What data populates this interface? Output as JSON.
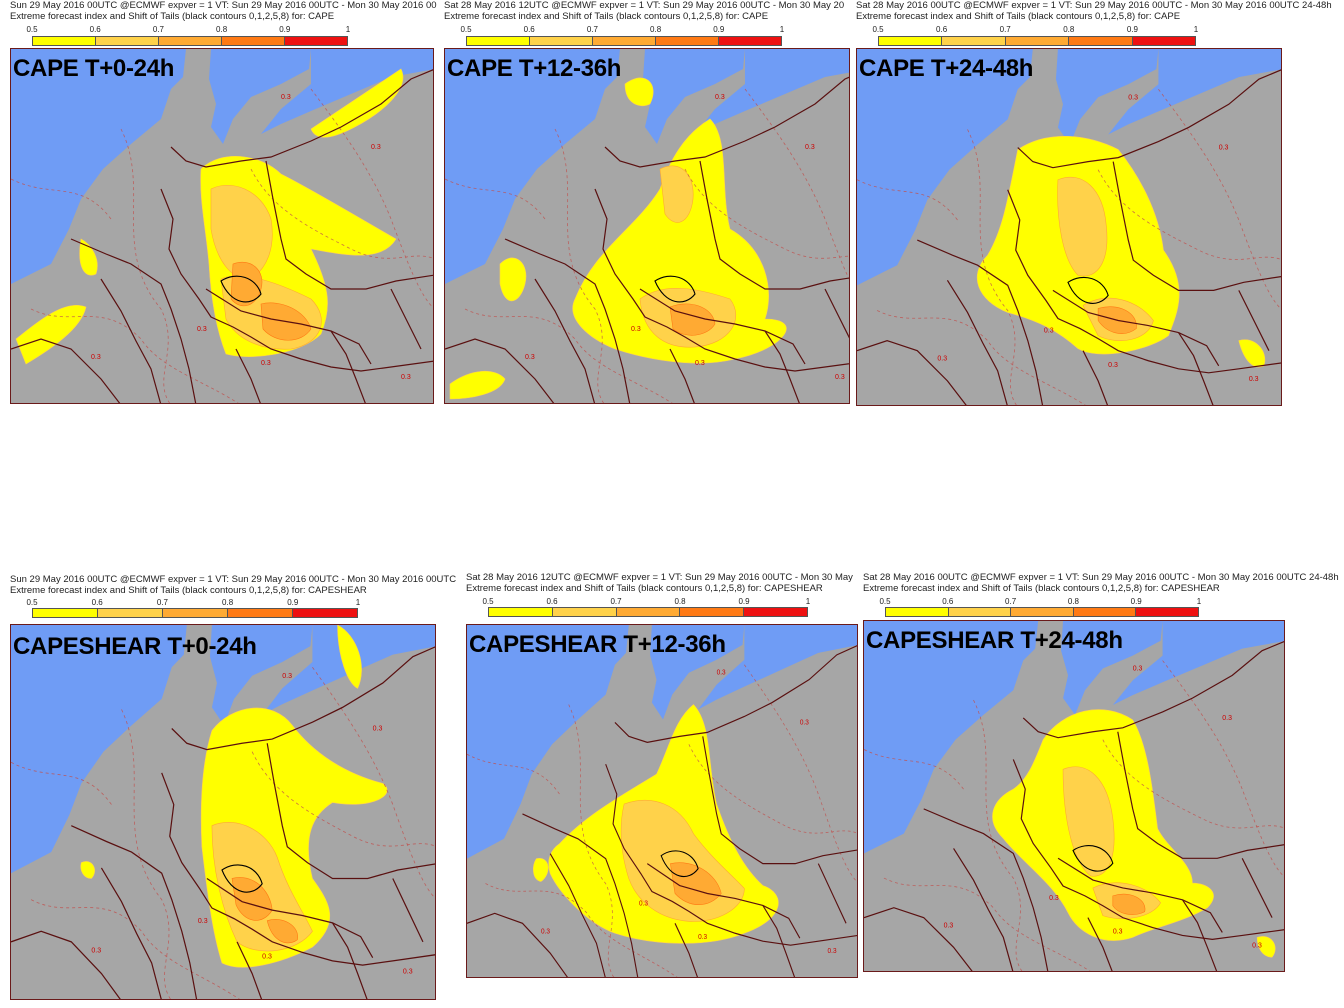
{
  "colors": {
    "sea": "#6f9cf5",
    "land": "#a6a6a6",
    "border": "#5a1010",
    "scale": [
      "#ffff00",
      "#ffd24a",
      "#ffaa33",
      "#ff7a14",
      "#ee1111"
    ]
  },
  "colorbar_ticks": [
    "0.5",
    "0.6",
    "0.7",
    "0.8",
    "0.9",
    "1"
  ],
  "contour_label": "0.3",
  "panels": [
    {
      "header1": "Sun 29 May 2016 00UTC @ECMWF expver = 1 VT: Sun 29 May 2016 00UTC - Mon 30 May 2016 00",
      "header2": "Extreme forecast index and Shift of Tails (black contours 0,1,2,5,8) for: CAPE",
      "title": "CAPE T+0-24h",
      "map_icon": "map-cape-0-24"
    },
    {
      "header1": "Sat 28 May 2016 12UTC @ECMWF expver = 1 VT: Sun 29 May 2016 00UTC - Mon 30 May 20",
      "header2": "Extreme forecast index and Shift of Tails (black contours 0,1,2,5,8) for: CAPE",
      "title": "CAPE T+12-36h",
      "map_icon": "map-cape-12-36"
    },
    {
      "header1": "Sat 28 May 2016 00UTC @ECMWF expver = 1 VT: Sun 29 May 2016 00UTC - Mon 30 May 2016 00UTC  24-48h",
      "header2": "Extreme forecast index and Shift of Tails (black contours 0,1,2,5,8) for: CAPE",
      "title": "CAPE T+24-48h",
      "map_icon": "map-cape-24-48"
    },
    {
      "header1": "Sun 29 May 2016 00UTC @ECMWF expver = 1 VT: Sun 29 May 2016 00UTC - Mon 30 May 2016 00UTC",
      "header2": "Extreme forecast index and Shift of Tails (black contours 0,1,2,5,8) for: CAPESHEAR",
      "title": "CAPESHEAR T+0-24h",
      "map_icon": "map-capeshear-0-24"
    },
    {
      "header1": "Sat 28 May 2016 12UTC @ECMWF expver = 1 VT: Sun 29 May 2016 00UTC - Mon 30 May 20",
      "header2": "Extreme forecast index and Shift of Tails (black contours 0,1,2,5,8) for: CAPESHEAR",
      "title": "CAPESHEAR T+12-36h",
      "map_icon": "map-capeshear-12-36"
    },
    {
      "header1": "Sat 28 May 2016 00UTC @ECMWF expver = 1 VT: Sun 29 May 2016 00UTC - Mon 30 May 2016 00UTC  24-48h",
      "header2": "Extreme forecast index and Shift of Tails (black contours 0,1,2,5,8) for: CAPESHEAR",
      "title": "CAPESHEAR T+24-48h",
      "map_icon": "map-capeshear-24-48"
    }
  ]
}
